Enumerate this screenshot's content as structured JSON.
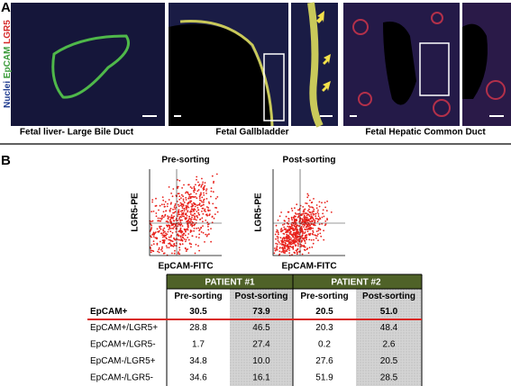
{
  "panel_a": {
    "label": "A",
    "stain_labels": [
      "Nuclei",
      "EpCAM",
      "LGR5"
    ],
    "captions": [
      "Fetal liver- Large Bile Duct",
      "Fetal Gallbladder",
      "Fetal Hepatic Common Duct"
    ]
  },
  "panel_b": {
    "label": "B",
    "plots": [
      {
        "title": "Pre-sorting",
        "y_label": "LGR5-PE",
        "x_label": "EpCAM-FITC"
      },
      {
        "title": "Post-sorting",
        "y_label": "LGR5-PE",
        "x_label": "EpCAM-FITC"
      }
    ],
    "table": {
      "groups": [
        "PATIENT #1",
        "PATIENT #2"
      ],
      "columns": [
        "Pre-sorting",
        "Post-sorting",
        "Pre-sorting",
        "Post-sorting"
      ],
      "rows": [
        [
          "EpCAM+",
          "30.5",
          "73.9",
          "20.5",
          "51.0"
        ],
        [
          "EpCAM+/LGR5+",
          "28.8",
          "46.5",
          "20.3",
          "48.4"
        ],
        [
          "EpCAM+/LGR5-",
          "1.7",
          "27.4",
          "0.2",
          "2.6"
        ],
        [
          "EpCAM-/LGR5+",
          "34.8",
          "10.0",
          "27.6",
          "20.5"
        ],
        [
          "EpCAM-/LGR5-",
          "34.6",
          "16.1",
          "51.9",
          "28.5"
        ]
      ]
    }
  }
}
